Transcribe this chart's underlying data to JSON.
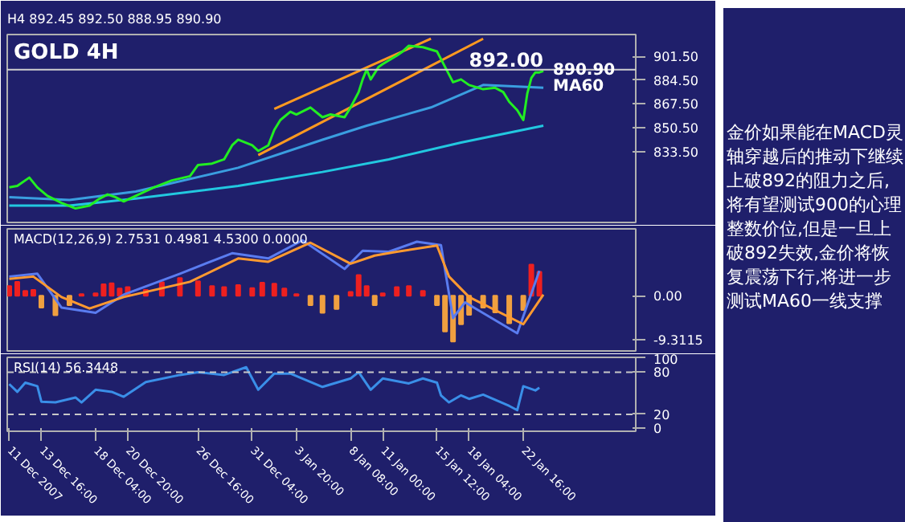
{
  "chart_data": [
    {
      "type": "line",
      "title": "GOLD 4H",
      "subtitle": "H4 892.45 892.50 888.95 890.90",
      "xlim": [
        "2007-12-10T20:00",
        "2008-02-01T00:00"
      ],
      "ylim": [
        783,
        917
      ],
      "yticks": [
        {
          "value": 901.5,
          "label": "901.50"
        },
        {
          "value": 884.5,
          "label": "884.50"
        },
        {
          "value": 867.5,
          "label": "867.50"
        },
        {
          "value": 850.5,
          "label": "850.50"
        },
        {
          "value": 833.5,
          "label": "833.50"
        }
      ],
      "tick_labels": "y",
      "series": [
        {
          "color": "#22c8e0",
          "x": [
            "2007-12-11T00:00",
            "2007-12-16T00:00",
            "2007-12-21T12:00",
            "2007-12-30T00:00",
            "2008-01-06T00:00",
            "2008-01-11T12:00",
            "2008-01-17T12:00",
            "2008-01-24T08:00"
          ],
          "values": [
            795,
            795,
            800,
            809,
            819,
            828,
            840,
            852
          ]
        },
        {
          "color": "#3a9ee0",
          "x": [
            "2007-12-11T00:00",
            "2007-12-16T00:00",
            "2007-12-21T12:00",
            "2007-12-30T00:00",
            "2008-01-06T00:00",
            "2008-01-09T16:00",
            "2008-01-15T00:00",
            "2008-01-19T08:00",
            "2008-01-24T08:00"
          ],
          "values": [
            801,
            799,
            805,
            822,
            842,
            852,
            865,
            881,
            879
          ]
        },
        {
          "color": "#ff9a20",
          "x": [
            "2008-01-02T00:00",
            "2008-01-15T00:00"
          ],
          "values": [
            864,
            914
          ]
        },
        {
          "color": "#ff9a20",
          "x": [
            "2007-12-31T16:00",
            "2008-01-19T08:00"
          ],
          "values": [
            831,
            914
          ]
        },
        {
          "color": "#22ee22",
          "x": [
            "2007-12-11T00:00",
            "2007-12-11T16:00",
            "2007-12-12T16:00",
            "2007-12-13T08:00",
            "2007-12-14T04:00",
            "2007-12-15T08:00",
            "2007-12-16T12:00",
            "2007-12-17T16:00",
            "2007-12-18T12:00",
            "2007-12-19T04:00",
            "2007-12-19T20:00",
            "2007-12-20T12:00",
            "2007-12-21T12:00",
            "2007-12-23T00:00",
            "2007-12-24T12:00",
            "2007-12-26T00:00",
            "2007-12-26T16:00",
            "2007-12-27T20:00",
            "2007-12-28T20:00",
            "2007-12-29T12:00",
            "2007-12-30T00:00",
            "2007-12-31T04:00",
            "2007-12-31T16:00",
            "2008-01-01T12:00",
            "2008-01-02T00:00",
            "2008-01-02T12:00",
            "2008-01-03T08:00",
            "2008-01-03T20:00",
            "2008-01-05T00:00",
            "2008-01-06T00:00",
            "2008-01-06T16:00",
            "2008-01-07T20:00",
            "2008-01-08T08:00",
            "2008-01-09T00:00",
            "2008-01-09T08:00",
            "2008-01-09T16:00",
            "2008-01-10T00:00",
            "2008-01-10T16:00",
            "2008-01-11T00:00",
            "2008-01-12T04:00",
            "2008-01-12T16:00",
            "2008-01-13T04:00",
            "2008-01-14T08:00",
            "2008-01-15T12:00",
            "2008-01-16T04:00",
            "2008-01-16T20:00",
            "2008-01-17T12:00",
            "2008-01-18T04:00",
            "2008-01-19T08:00",
            "2008-01-20T08:00",
            "2008-01-21T00:00",
            "2008-01-21T12:00",
            "2008-01-22T04:00",
            "2008-01-22T16:00",
            "2008-01-23T00:00",
            "2008-01-23T08:00",
            "2008-01-23T16:00",
            "2008-01-24T00:00",
            "2008-01-24T08:00"
          ],
          "values": [
            808,
            809,
            815,
            808,
            802,
            797,
            793,
            795,
            800,
            803,
            801,
            798,
            802,
            808,
            813,
            816,
            824,
            825,
            828,
            838,
            842,
            838,
            834,
            838,
            849,
            856,
            862,
            860,
            865,
            858,
            860,
            858,
            865,
            876,
            885,
            892,
            885,
            894,
            896,
            902,
            905,
            909,
            908,
            905,
            894,
            883,
            885,
            881,
            878,
            879,
            876,
            869,
            863,
            856,
            875,
            886,
            890,
            890,
            891
          ]
        }
      ],
      "ref_lines": [
        {
          "axis": "y",
          "value": 892,
          "label": "892.00",
          "color": "#d0d0d0",
          "line_style": "solid"
        }
      ],
      "annotations": [
        {
          "text": "MA60",
          "x": "2008-01-24T08:00",
          "y": 879
        },
        {
          "text": "890.90",
          "x": "2008-01-24T08:00",
          "y": 890.9
        },
        "金价如果能在MACD灵轴穿越后的推动下继续上破892的阻力之后,将有望测试900的心理整数价位,但是一旦上破892失效,金价将恢复震荡下行,将进一步测试MA60一线支撑"
      ]
    },
    {
      "type": "bar",
      "title": "MACD(12,26,9) 2.7531 0.4981 4.5300 0.0000",
      "xlim": [
        "2007-12-10T20:00",
        "2008-02-01T00:00"
      ],
      "ylim": [
        -11.6,
        14
      ],
      "yticks": [
        {
          "value": 0,
          "label": "0.00"
        },
        {
          "value": -9.3115,
          "label": "-9.3115"
        }
      ],
      "tick_labels": "y",
      "series": [
        {
          "type": "bar",
          "x": [
            "2007-12-11T00:00",
            "2007-12-11T16:00",
            "2007-12-12T08:00",
            "2007-12-13T00:00",
            "2007-12-13T16:00",
            "2007-12-14T20:00",
            "2007-12-16T00:00",
            "2007-12-17T00:00",
            "2007-12-18T04:00",
            "2007-12-18T20:00",
            "2007-12-19T12:00",
            "2007-12-20T04:00",
            "2007-12-20T20:00",
            "2007-12-22T08:00",
            "2007-12-23T16:00",
            "2007-12-25T04:00",
            "2007-12-26T16:00",
            "2007-12-27T20:00",
            "2007-12-28T20:00",
            "2007-12-30T00:00",
            "2007-12-31T04:00",
            "2008-01-01T00:00",
            "2008-01-02T00:00",
            "2008-01-02T20:00",
            "2008-01-03T20:00",
            "2008-01-05T00:00",
            "2008-01-06T00:00",
            "2008-01-07T04:00",
            "2008-01-08T08:00",
            "2008-01-09T00:00",
            "2008-01-09T16:00",
            "2008-01-10T08:00",
            "2008-01-11T00:00",
            "2008-01-12T04:00",
            "2008-01-13T04:00",
            "2008-01-14T08:00",
            "2008-01-15T12:00",
            "2008-01-16T04:00",
            "2008-01-16T20:00",
            "2008-01-17T12:00",
            "2008-01-18T04:00",
            "2008-01-19T08:00",
            "2008-01-20T08:00",
            "2008-01-21T12:00",
            "2008-01-22T16:00",
            "2008-01-23T08:00",
            "2008-01-24T00:00"
          ],
          "values": [
            2.0,
            2.9,
            1.0,
            1.2,
            -2.5,
            -4.1,
            -2.0,
            0.3,
            0.5,
            2.4,
            2.6,
            1.5,
            1.8,
            1.2,
            2.8,
            3.7,
            3.0,
            2.0,
            1.8,
            2.2,
            1.6,
            2.7,
            2.5,
            1.5,
            0.3,
            -2.0,
            -3.6,
            -2.8,
            0.8,
            4.3,
            2.0,
            -2.0,
            0.5,
            1.8,
            2.0,
            1.0,
            -2.0,
            -7.5,
            -9.6,
            -6.0,
            -4.0,
            -2.5,
            -3.5,
            -5.8,
            -3.0,
            6.5,
            5.0
          ],
          "colors": [
            "#ee2020",
            "#ee2020",
            "#ee2020",
            "#ee2020",
            "#f0a040",
            "#f0a040",
            "#f0a040",
            "#ee2020",
            "#ee2020",
            "#ee2020",
            "#ee2020",
            "#ee2020",
            "#ee2020",
            "#ee2020",
            "#ee2020",
            "#ee2020",
            "#ee2020",
            "#ee2020",
            "#ee2020",
            "#ee2020",
            "#ee2020",
            "#ee2020",
            "#ee2020",
            "#ee2020",
            "#ee2020",
            "#f0a040",
            "#f0a040",
            "#f0a040",
            "#ee2020",
            "#ee2020",
            "#ee2020",
            "#f0a040",
            "#ee2020",
            "#ee2020",
            "#ee2020",
            "#ee2020",
            "#f0a040",
            "#f0a040",
            "#f0a040",
            "#f0a040",
            "#f0a040",
            "#f0a040",
            "#f0a040",
            "#f0a040",
            "#f0a040",
            "#ee2020",
            "#ee2020"
          ]
        },
        {
          "type": "line",
          "color": "#5a7cf0",
          "x": [
            "2007-12-11T00:00",
            "2007-12-13T08:00",
            "2007-12-15T08:00",
            "2007-12-18T04:00",
            "2007-12-20T12:00",
            "2007-12-25T04:00",
            "2007-12-29T12:00",
            "2008-01-01T12:00",
            "2008-01-04T08:00",
            "2008-01-07T20:00",
            "2008-01-09T08:00",
            "2008-01-11T12:00",
            "2008-01-13T20:00",
            "2008-01-15T20:00",
            "2008-01-16T20:00",
            "2008-01-17T20:00",
            "2008-01-22T04:00",
            "2008-01-24T00:00"
          ],
          "values": [
            4.0,
            4.6,
            -2.5,
            -3.6,
            0.2,
            4.6,
            8.9,
            7.8,
            11.6,
            5.6,
            9.4,
            9.2,
            11.3,
            10.6,
            -4.7,
            -1.4,
            -7.9,
            5.2
          ]
        },
        {
          "type": "line",
          "color": "#ff9a30",
          "x": [
            "2007-12-11T00:00",
            "2007-12-13T00:00",
            "2007-12-15T08:00",
            "2007-12-17T16:00",
            "2007-12-20T12:00",
            "2007-12-26T00:00",
            "2007-12-30T00:00",
            "2008-01-01T12:00",
            "2008-01-05T00:00",
            "2008-01-08T08:00",
            "2008-01-10T08:00",
            "2008-01-12T04:00",
            "2008-01-15T12:00",
            "2008-01-16T12:00",
            "2008-01-18T04:00",
            "2008-01-22T16:00",
            "2008-01-24T08:00"
          ],
          "values": [
            3.5,
            4.0,
            -0.3,
            -2.7,
            -0.3,
            2.9,
            7.8,
            7.1,
            11.1,
            6.7,
            8.4,
            9.2,
            10.5,
            4.0,
            -0.3,
            -6.0,
            0.2
          ]
        }
      ]
    },
    {
      "type": "line",
      "title": "RSI(14) 56.3448",
      "xlim": [
        "2007-12-10T20:00",
        "2008-02-01T00:00"
      ],
      "xticks": [
        {
          "value": "2007-12-11T00:00",
          "label": "11 Dec 2007"
        },
        {
          "value": "2007-12-13T16:00",
          "label": "13 Dec 16:00"
        },
        {
          "value": "2007-12-18T04:00",
          "label": "18 Dec 04:00"
        },
        {
          "value": "2007-12-20T20:00",
          "label": "20 Dec 20:00"
        },
        {
          "value": "2007-12-26T16:00",
          "label": "26 Dec 16:00"
        },
        {
          "value": "2007-12-31T04:00",
          "label": "31 Dec 04:00"
        },
        {
          "value": "2008-01-03T20:00",
          "label": "3 Jan 20:00"
        },
        {
          "value": "2008-01-08T08:00",
          "label": "8 Jan 08:00"
        },
        {
          "value": "2008-01-11T00:00",
          "label": "11 Jan 00:00"
        },
        {
          "value": "2008-01-15T12:00",
          "label": "15 Jan 12:00"
        },
        {
          "value": "2008-01-18T04:00",
          "label": "18 Jan 04:00"
        },
        {
          "value": "2008-01-22T16:00",
          "label": "22 Jan 16:00"
        }
      ],
      "ylim": [
        -4,
        101
      ],
      "yticks": [
        0,
        20,
        80,
        100
      ],
      "series": [
        {
          "color": "#3a8fe8",
          "x": [
            "2007-12-11T00:00",
            "2007-12-11T16:00",
            "2007-12-12T08:00",
            "2007-12-13T08:00",
            "2007-12-13T16:00",
            "2007-12-14T20:00",
            "2007-12-16T12:00",
            "2007-12-17T00:00",
            "2007-12-18T04:00",
            "2007-12-19T12:00",
            "2007-12-20T12:00",
            "2007-12-22T08:00",
            "2007-12-25T04:00",
            "2007-12-26T16:00",
            "2007-12-28T20:00",
            "2007-12-30T16:00",
            "2007-12-31T16:00",
            "2008-01-02T00:00",
            "2008-01-03T08:00",
            "2008-01-06T00:00",
            "2008-01-08T08:00",
            "2008-01-09T00:00",
            "2008-01-10T00:00",
            "2008-01-11T00:00",
            "2008-01-13T04:00",
            "2008-01-14T08:00",
            "2008-01-15T12:00",
            "2008-01-15T20:00",
            "2008-01-16T12:00",
            "2008-01-17T12:00",
            "2008-01-18T04:00",
            "2008-01-19T08:00",
            "2008-01-21T12:00",
            "2008-01-22T04:00",
            "2008-01-22T16:00",
            "2008-01-23T16:00",
            "2008-01-24T00:00"
          ],
          "values": [
            63,
            52,
            65,
            60,
            38,
            37,
            44,
            37,
            55,
            52,
            45,
            66,
            76,
            80,
            76,
            87,
            55,
            78,
            78,
            59,
            71,
            80,
            55,
            71,
            64,
            71,
            65,
            47,
            37,
            47,
            42,
            48,
            32,
            26,
            60,
            54,
            58
          ]
        }
      ],
      "ref_lines": [
        {
          "axis": "y",
          "value": 80,
          "color": "#c8c8c8",
          "line_style": "dashed"
        },
        {
          "axis": "y",
          "value": 20,
          "color": "#c8c8c8",
          "line_style": "dashed"
        }
      ]
    }
  ]
}
